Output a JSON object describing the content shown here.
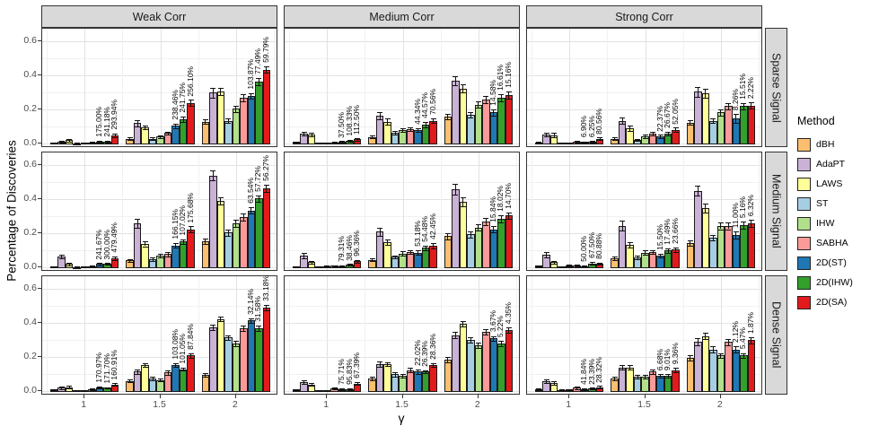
{
  "figure": {
    "y_axis_title": "Percentage of Discoveries",
    "x_axis_title": "γ",
    "col_strips": [
      "Weak Corr",
      "Medium Corr",
      "Strong Corr"
    ],
    "row_strips": [
      "Sparse Signal",
      "Medium Signal",
      "Dense Signal"
    ],
    "y_tick_labels": [
      "0.6",
      "0.4",
      "0.2",
      "0.0"
    ],
    "x_tick_labels": [
      "1",
      "1.5",
      "2"
    ],
    "strip_bg_color": "#d9d9d9",
    "panel_border_color": "#333333",
    "gridline_major_color": "#e2e2e2",
    "gridline_minor_color": "#f1f1f1"
  },
  "legend": {
    "title": "Method",
    "entries": [
      {
        "label": "dBH",
        "color": "#FDBF6F"
      },
      {
        "label": "AdaPT",
        "color": "#CAB2D6"
      },
      {
        "label": "LAWS",
        "color": "#FFFF99"
      },
      {
        "label": "ST",
        "color": "#A6CEE3"
      },
      {
        "label": "IHW",
        "color": "#B2DF8A"
      },
      {
        "label": "SABHA",
        "color": "#FB9A99"
      },
      {
        "label": "2D(ST)",
        "color": "#1F78B4"
      },
      {
        "label": "2D(IHW)",
        "color": "#33A02C"
      },
      {
        "label": "2D(SA)",
        "color": "#E31A1C"
      }
    ]
  },
  "chart_data": {
    "type": "bar",
    "title": "",
    "xlabel": "γ",
    "ylabel": "Percentage of Discoveries",
    "facet_cols": [
      "Weak Corr",
      "Medium Corr",
      "Strong Corr"
    ],
    "facet_rows": [
      "Sparse Signal",
      "Medium Signal",
      "Dense Signal"
    ],
    "methods": [
      "dBH",
      "AdaPT",
      "LAWS",
      "ST",
      "IHW",
      "SABHA",
      "2D(ST)",
      "2D(IHW)",
      "2D(SA)"
    ],
    "colors": [
      "#FDBF6F",
      "#CAB2D6",
      "#FFFF99",
      "#A6CEE3",
      "#B2DF8A",
      "#FB9A99",
      "#1F78B4",
      "#33A02C",
      "#E31A1C"
    ],
    "x": [
      1,
      1.5,
      2
    ],
    "xlim": [
      0.72,
      2.28
    ],
    "ylim": [
      -0.025,
      0.675
    ],
    "y_major_ticks": [
      0,
      0.2,
      0.4,
      0.6
    ],
    "y_minor_ticks": [
      0.1,
      0.3,
      0.5
    ],
    "x_minor_ticks": [
      0.75,
      1.25,
      1.75,
      2.25
    ],
    "label_note": "rotated percentage labels annotate the 2D(ST), 2D(IHW), 2D(SA) bars of each group",
    "panels": [
      {
        "row": "Sparse Signal",
        "col": "Weak Corr",
        "groups": [
          {
            "x": 1,
            "values": [
              0.005,
              0.012,
              0.02,
              0.003,
              0.005,
              0.008,
              0.013,
              0.013,
              0.05
            ],
            "errors": [
              0.003,
              0.005,
              0.006,
              0.002,
              0.003,
              0.004,
              0.005,
              0.005,
              0.01
            ],
            "labels": [
              "175.00%",
              "241.18%",
              "293.94%"
            ]
          },
          {
            "x": 1.5,
            "values": [
              0.03,
              0.12,
              0.095,
              0.03,
              0.042,
              0.062,
              0.105,
              0.145,
              0.24
            ],
            "errors": [
              0.008,
              0.018,
              0.012,
              0.008,
              0.008,
              0.01,
              0.012,
              0.015,
              0.018
            ],
            "labels": [
              "238.46%",
              "241.75%",
              "256.10%"
            ]
          },
          {
            "x": 2,
            "values": [
              0.13,
              0.3,
              0.305,
              0.135,
              0.205,
              0.27,
              0.28,
              0.365,
              0.435
            ],
            "errors": [
              0.012,
              0.028,
              0.022,
              0.015,
              0.018,
              0.02,
              0.018,
              0.022,
              0.02
            ],
            "labels": [
              "103.87%",
              "77.49%",
              "59.79%"
            ]
          }
        ]
      },
      {
        "row": "Sparse Signal",
        "col": "Medium Corr",
        "groups": [
          {
            "x": 1,
            "values": [
              0.01,
              0.06,
              0.055,
              0.004,
              0.005,
              0.008,
              0.011,
              0.017,
              0.026
            ],
            "errors": [
              0.004,
              0.012,
              0.012,
              0.002,
              0.003,
              0.004,
              0.004,
              0.006,
              0.007
            ],
            "labels": [
              "37.50%",
              "108.33%",
              "112.50%"
            ]
          },
          {
            "x": 1.5,
            "values": [
              0.04,
              0.165,
              0.13,
              0.065,
              0.08,
              0.085,
              0.08,
              0.112,
              0.135
            ],
            "errors": [
              0.008,
              0.02,
              0.018,
              0.012,
              0.012,
              0.012,
              0.012,
              0.014,
              0.015
            ],
            "labels": [
              "44.34%",
              "44.57%",
              "70.56%"
            ]
          },
          {
            "x": 2,
            "values": [
              0.16,
              0.37,
              0.325,
              0.17,
              0.23,
              0.26,
              0.185,
              0.27,
              0.285
            ],
            "errors": [
              0.015,
              0.025,
              0.025,
              0.018,
              0.02,
              0.02,
              0.018,
              0.02,
              0.02
            ],
            "labels": [
              "14.58%",
              "16.61%",
              "15.16%"
            ]
          }
        ]
      },
      {
        "row": "Sparse Signal",
        "col": "Strong Corr",
        "groups": [
          {
            "x": 1,
            "values": [
              0.008,
              0.055,
              0.05,
              0.004,
              0.006,
              0.01,
              0.01,
              0.012,
              0.028
            ],
            "errors": [
              0.004,
              0.012,
              0.012,
              0.002,
              0.003,
              0.005,
              0.004,
              0.005,
              0.008
            ],
            "labels": [
              "6.90%",
              "6.25%",
              "80.56%"
            ]
          },
          {
            "x": 1.5,
            "values": [
              0.028,
              0.135,
              0.09,
              0.022,
              0.045,
              0.058,
              0.042,
              0.06,
              0.082
            ],
            "errors": [
              0.008,
              0.02,
              0.015,
              0.007,
              0.01,
              0.01,
              0.01,
              0.012,
              0.012
            ],
            "labels": [
              "22.37%",
              "26.67%",
              "52.05%"
            ]
          },
          {
            "x": 2,
            "values": [
              0.125,
              0.305,
              0.295,
              0.135,
              0.185,
              0.22,
              0.15,
              0.22,
              0.225
            ],
            "errors": [
              0.012,
              0.028,
              0.025,
              0.015,
              0.018,
              0.02,
              0.025,
              0.02,
              0.02
            ],
            "labels": [
              "8.26%",
              "15.51%",
              "2.22%"
            ]
          }
        ]
      },
      {
        "row": "Medium Signal",
        "col": "Weak Corr",
        "groups": [
          {
            "x": 1,
            "values": [
              0.004,
              0.065,
              0.02,
              0.003,
              0.006,
              0.009,
              0.02,
              0.021,
              0.056
            ],
            "errors": [
              0.002,
              0.012,
              0.006,
              0.002,
              0.003,
              0.004,
              0.006,
              0.006,
              0.01
            ],
            "labels": [
              "241.67%",
              "300.00%",
              "479.49%"
            ]
          },
          {
            "x": 1.5,
            "values": [
              0.042,
              0.26,
              0.14,
              0.05,
              0.07,
              0.078,
              0.13,
              0.152,
              0.225
            ],
            "errors": [
              0.008,
              0.025,
              0.015,
              0.01,
              0.01,
              0.012,
              0.014,
              0.015,
              0.018
            ],
            "labels": [
              "166.15%",
              "107.02%",
              "175.68%"
            ]
          },
          {
            "x": 2,
            "values": [
              0.155,
              0.54,
              0.39,
              0.205,
              0.26,
              0.295,
              0.335,
              0.405,
              0.465
            ],
            "errors": [
              0.015,
              0.03,
              0.02,
              0.018,
              0.02,
              0.02,
              0.02,
              0.02,
              0.02
            ],
            "labels": [
              "63.54%",
              "57.72%",
              "56.27%"
            ]
          }
        ]
      },
      {
        "row": "Medium Signal",
        "col": "Medium Corr",
        "groups": [
          {
            "x": 1,
            "values": [
              0.006,
              0.07,
              0.032,
              0.004,
              0.007,
              0.01,
              0.009,
              0.015,
              0.036
            ],
            "errors": [
              0.003,
              0.014,
              0.008,
              0.002,
              0.003,
              0.004,
              0.004,
              0.005,
              0.008
            ],
            "labels": [
              "79.31%",
              "38.46%",
              "96.36%"
            ]
          },
          {
            "x": 1.5,
            "values": [
              0.046,
              0.21,
              0.15,
              0.062,
              0.082,
              0.09,
              0.088,
              0.115,
              0.128
            ],
            "errors": [
              0.008,
              0.022,
              0.016,
              0.01,
              0.012,
              0.012,
              0.012,
              0.013,
              0.014
            ],
            "labels": [
              "53.18%",
              "54.48%",
              "42.45%"
            ]
          },
          {
            "x": 2,
            "values": [
              0.185,
              0.46,
              0.385,
              0.195,
              0.235,
              0.27,
              0.225,
              0.285,
              0.305
            ],
            "errors": [
              0.018,
              0.03,
              0.025,
              0.018,
              0.02,
              0.02,
              0.02,
              0.02,
              0.02
            ],
            "labels": [
              "15.84%",
              "18.02%",
              "14.70%"
            ]
          }
        ]
      },
      {
        "row": "Medium Signal",
        "col": "Strong Corr",
        "groups": [
          {
            "x": 1,
            "values": [
              0.01,
              0.075,
              0.032,
              0.005,
              0.012,
              0.01,
              0.009,
              0.025,
              0.022
            ],
            "errors": [
              0.004,
              0.015,
              0.008,
              0.003,
              0.005,
              0.005,
              0.004,
              0.007,
              0.006
            ],
            "labels": [
              "50.00%",
              "67.50%",
              "80.88%"
            ]
          },
          {
            "x": 1.5,
            "values": [
              0.055,
              0.245,
              0.135,
              0.06,
              0.088,
              0.09,
              0.07,
              0.1,
              0.105
            ],
            "errors": [
              0.01,
              0.028,
              0.016,
              0.01,
              0.012,
              0.012,
              0.012,
              0.013,
              0.013
            ],
            "labels": [
              "15.50%",
              "17.49%",
              "23.66%"
            ]
          },
          {
            "x": 2,
            "values": [
              0.145,
              0.45,
              0.35,
              0.175,
              0.245,
              0.245,
              0.19,
              0.25,
              0.26
            ],
            "errors": [
              0.015,
              0.03,
              0.025,
              0.018,
              0.02,
              0.02,
              0.02,
              0.02,
              0.02
            ],
            "labels": [
              "11.00%",
              "5.16%",
              "6.32%"
            ]
          }
        ]
      },
      {
        "row": "Dense Signal",
        "col": "Weak Corr",
        "groups": [
          {
            "x": 1,
            "values": [
              0.01,
              0.02,
              0.025,
              0.004,
              0.005,
              0.013,
              0.024,
              0.02,
              0.04
            ],
            "errors": [
              0.004,
              0.006,
              0.006,
              0.002,
              0.003,
              0.005,
              0.006,
              0.005,
              0.008
            ],
            "labels": [
              "170.97%",
              "171.70%",
              "160.91%"
            ]
          },
          {
            "x": 1.5,
            "values": [
              0.06,
              0.115,
              0.155,
              0.075,
              0.065,
              0.11,
              0.155,
              0.13,
              0.21
            ],
            "errors": [
              0.008,
              0.012,
              0.012,
              0.01,
              0.008,
              0.012,
              0.012,
              0.01,
              0.012
            ],
            "labels": [
              "103.08%",
              "101.05%",
              "87.84%"
            ]
          },
          {
            "x": 2,
            "values": [
              0.095,
              0.375,
              0.425,
              0.315,
              0.28,
              0.37,
              0.415,
              0.37,
              0.49
            ],
            "errors": [
              0.01,
              0.018,
              0.015,
              0.015,
              0.015,
              0.015,
              0.015,
              0.015,
              0.015
            ],
            "labels": [
              "32.14%",
              "31.58%",
              "33.18%"
            ]
          }
        ]
      },
      {
        "row": "Dense Signal",
        "col": "Medium Corr",
        "groups": [
          {
            "x": 1,
            "values": [
              0.01,
              0.055,
              0.04,
              0.005,
              0.005,
              0.015,
              0.012,
              0.012,
              0.045
            ],
            "errors": [
              0.004,
              0.01,
              0.008,
              0.002,
              0.003,
              0.005,
              0.004,
              0.004,
              0.008
            ],
            "labels": [
              "75.71%",
              "95.83%",
              "67.39%"
            ]
          },
          {
            "x": 1.5,
            "values": [
              0.075,
              0.16,
              0.16,
              0.1,
              0.09,
              0.125,
              0.115,
              0.115,
              0.155
            ],
            "errors": [
              0.01,
              0.014,
              0.012,
              0.012,
              0.01,
              0.012,
              0.012,
              0.01,
              0.012
            ],
            "labels": [
              "22.02%",
              "26.39%",
              "28.36%"
            ]
          },
          {
            "x": 2,
            "values": [
              0.185,
              0.33,
              0.395,
              0.3,
              0.27,
              0.35,
              0.31,
              0.28,
              0.36
            ],
            "errors": [
              0.015,
              0.02,
              0.015,
              0.015,
              0.015,
              0.015,
              0.015,
              0.015,
              0.015
            ],
            "labels": [
              "3.67%",
              "5.22%",
              "4.35%"
            ]
          }
        ]
      },
      {
        "row": "Dense Signal",
        "col": "Strong Corr",
        "groups": [
          {
            "x": 1,
            "values": [
              0.012,
              0.06,
              0.05,
              0.008,
              0.01,
              0.02,
              0.012,
              0.015,
              0.025
            ],
            "errors": [
              0.005,
              0.01,
              0.01,
              0.003,
              0.004,
              0.006,
              0.004,
              0.005,
              0.006
            ],
            "labels": [
              "41.84%",
              "23.39%",
              "28.32%"
            ]
          },
          {
            "x": 1.5,
            "values": [
              0.075,
              0.14,
              0.14,
              0.085,
              0.085,
              0.115,
              0.09,
              0.09,
              0.125
            ],
            "errors": [
              0.01,
              0.014,
              0.012,
              0.01,
              0.01,
              0.012,
              0.01,
              0.01,
              0.012
            ],
            "labels": [
              "6.68%",
              "9.01%",
              "9.36%"
            ]
          },
          {
            "x": 2,
            "values": [
              0.195,
              0.29,
              0.325,
              0.245,
              0.21,
              0.29,
              0.245,
              0.21,
              0.3
            ],
            "errors": [
              0.015,
              0.02,
              0.018,
              0.018,
              0.015,
              0.018,
              0.018,
              0.015,
              0.018
            ],
            "labels": [
              "2.12%",
              "5.47%",
              "1.87%"
            ]
          }
        ]
      }
    ]
  }
}
